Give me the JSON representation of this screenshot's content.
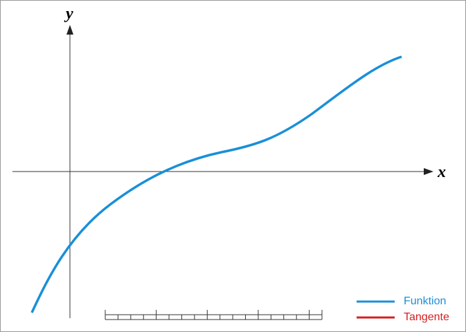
{
  "axes": {
    "x_label": "x",
    "y_label": "y"
  },
  "legend": [
    {
      "label": "Funktion",
      "color": "#1a8fd8"
    },
    {
      "label": "Tangente",
      "color": "#d42020"
    }
  ]
}
